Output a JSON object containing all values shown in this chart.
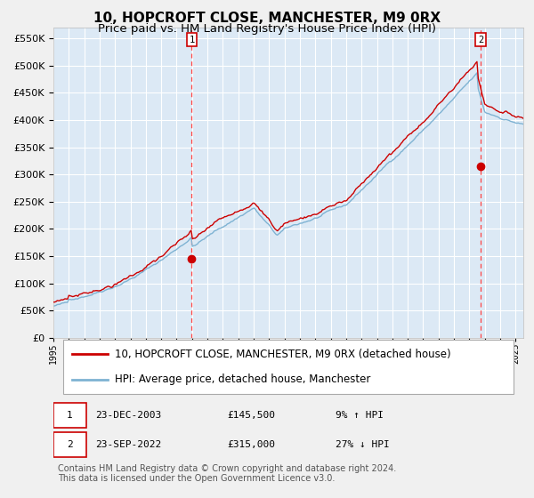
{
  "title": "10, HOPCROFT CLOSE, MANCHESTER, M9 0RX",
  "subtitle": "Price paid vs. HM Land Registry's House Price Index (HPI)",
  "ylim": [
    0,
    570000
  ],
  "yticks": [
    0,
    50000,
    100000,
    150000,
    200000,
    250000,
    300000,
    350000,
    400000,
    450000,
    500000,
    550000
  ],
  "x_start_year": 1995,
  "x_end_year": 2025,
  "plot_bg_color": "#dce9f5",
  "grid_color": "#ffffff",
  "red_line_color": "#cc0000",
  "blue_line_color": "#7fb3d3",
  "dashed_line_color": "#ff4444",
  "marker_color": "#cc0000",
  "sale1_date_num": 2003.98,
  "sale1_value": 145500,
  "sale1_label": "1",
  "sale1_date_str": "23-DEC-2003",
  "sale1_price_str": "£145,500",
  "sale1_hpi_str": "9% ↑ HPI",
  "sale2_date_num": 2022.73,
  "sale2_value": 315000,
  "sale2_label": "2",
  "sale2_date_str": "23-SEP-2022",
  "sale2_price_str": "£315,000",
  "sale2_hpi_str": "27% ↓ HPI",
  "legend_label_red": "10, HOPCROFT CLOSE, MANCHESTER, M9 0RX (detached house)",
  "legend_label_blue": "HPI: Average price, detached house, Manchester",
  "footnote": "Contains HM Land Registry data © Crown copyright and database right 2024.\nThis data is licensed under the Open Government Licence v3.0.",
  "title_fontsize": 11,
  "subtitle_fontsize": 9.5,
  "tick_fontsize": 8,
  "legend_fontsize": 8.5,
  "footnote_fontsize": 7
}
